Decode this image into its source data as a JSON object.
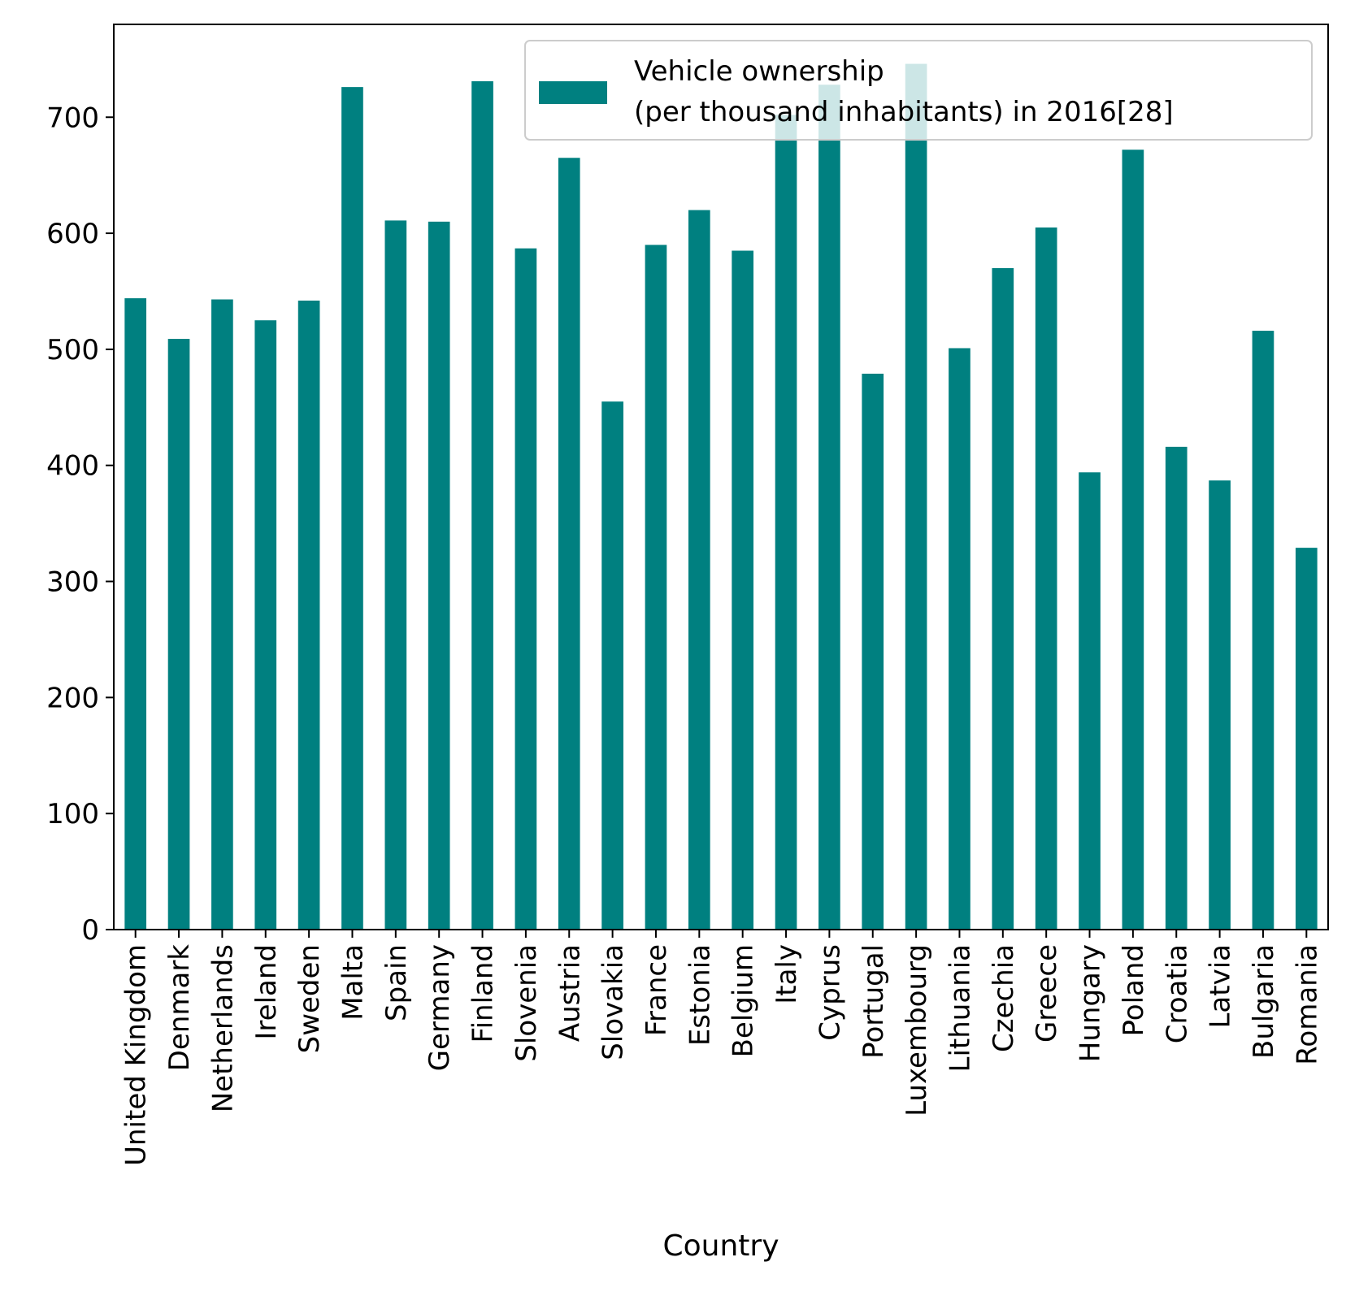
{
  "chart_data": {
    "type": "bar",
    "title": "",
    "xlabel": "Country",
    "ylabel": "",
    "ylim": [
      0,
      780
    ],
    "yticks": [
      0,
      100,
      200,
      300,
      400,
      500,
      600,
      700
    ],
    "grid": false,
    "legend_placement": "top-right",
    "categories": [
      "United Kingdom",
      "Denmark",
      "Netherlands",
      "Ireland",
      "Sweden",
      "Malta",
      "Spain",
      "Germany",
      "Finland",
      "Slovenia",
      "Austria",
      "Slovakia",
      "France",
      "Estonia",
      "Belgium",
      "Italy",
      "Cyprus",
      "Portugal",
      "Luxembourg",
      "Lithuania",
      "Czechia",
      "Greece",
      "Hungary",
      "Poland",
      "Croatia",
      "Latvia",
      "Bulgaria",
      "Romania"
    ],
    "series": [
      {
        "name": "Vehicle ownership\n(per thousand inhabitants) in 2016[28]",
        "color": "#008080",
        "values": [
          544,
          509,
          543,
          525,
          542,
          726,
          611,
          610,
          731,
          587,
          665,
          455,
          590,
          620,
          585,
          702,
          728,
          479,
          746,
          501,
          570,
          605,
          394,
          672,
          416,
          387,
          516,
          329
        ]
      }
    ]
  }
}
